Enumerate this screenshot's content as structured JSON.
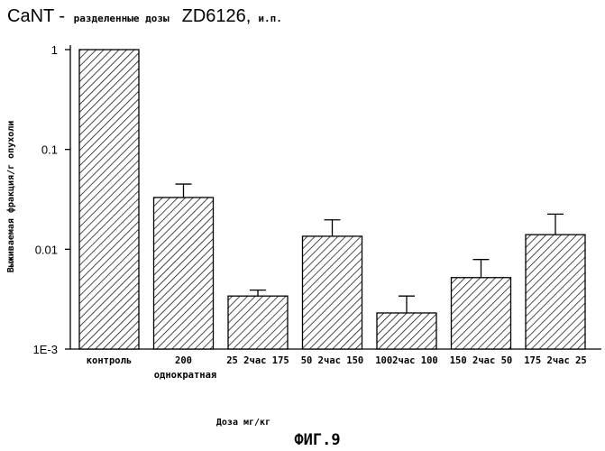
{
  "chart_data": {
    "type": "bar",
    "title_main_1": "CaNT - ",
    "title_small_1": "разделенные дозы",
    "title_main_2": "ZD6126,",
    "title_small_2": "и.п.",
    "ylabel": "Выживаемая фракция/г опухоли",
    "xlabel": "Доза мг/кг",
    "figure_label": "ФИГ.9",
    "y_scale": "log",
    "ylim": [
      0.001,
      1
    ],
    "y_ticks": [
      {
        "value": 1,
        "label": "1"
      },
      {
        "value": 0.1,
        "label": "0.1"
      },
      {
        "value": 0.01,
        "label": "0.01"
      },
      {
        "value": 0.001,
        "label": "1E-3"
      }
    ],
    "categories": [
      {
        "line1": "контроль",
        "line2": ""
      },
      {
        "line1": "200",
        "line2": "однократная"
      },
      {
        "line1": "25 2час 175",
        "line2": ""
      },
      {
        "line1": "50 2час 150",
        "line2": ""
      },
      {
        "line1": "1002час 100",
        "line2": ""
      },
      {
        "line1": "150 2час 50",
        "line2": ""
      },
      {
        "line1": "175 2час 25",
        "line2": ""
      }
    ],
    "values": [
      1.0,
      0.033,
      0.0034,
      0.0135,
      0.0023,
      0.0052,
      0.014
    ],
    "errors_upper": [
      null,
      0.045,
      0.0039,
      0.0197,
      0.0034,
      0.0079,
      0.0225
    ],
    "grid": false,
    "bar_fill": "diagonal-hatch"
  }
}
